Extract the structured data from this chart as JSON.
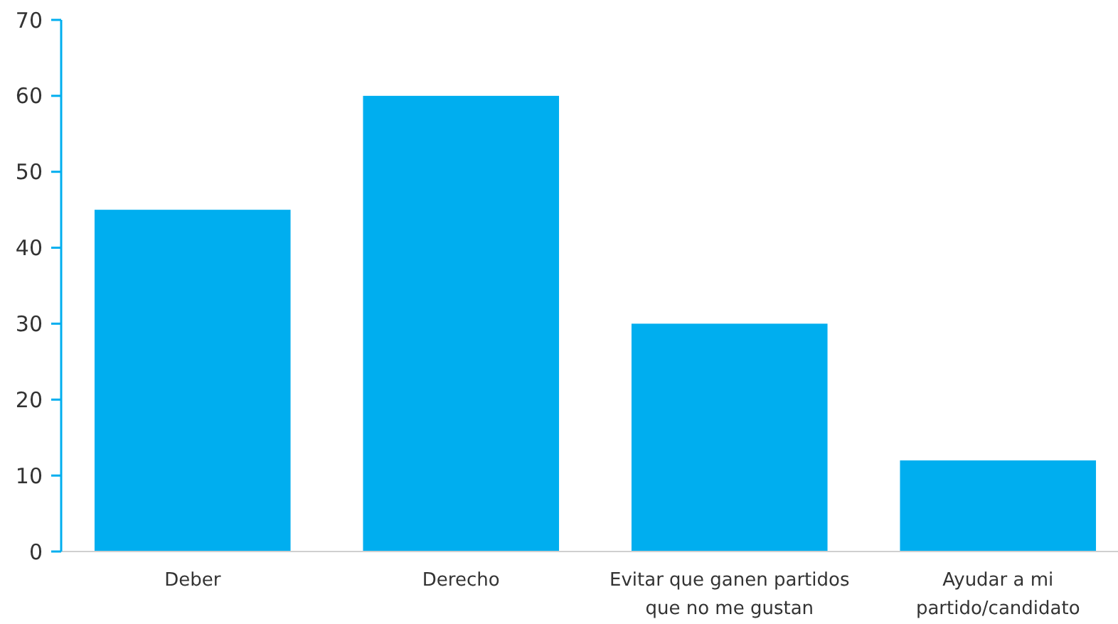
{
  "chart_data": {
    "type": "bar",
    "categories": [
      "Deber",
      "Derecho",
      "Evitar que ganen partidos que no me gustan",
      "Ayudar a mi partido/candidato"
    ],
    "values": [
      45,
      60,
      30,
      12
    ],
    "color": "#00aeef",
    "ylim": [
      0,
      70
    ],
    "yticks": [
      0,
      10,
      20,
      30,
      40,
      50,
      60,
      70
    ],
    "grid": false
  }
}
